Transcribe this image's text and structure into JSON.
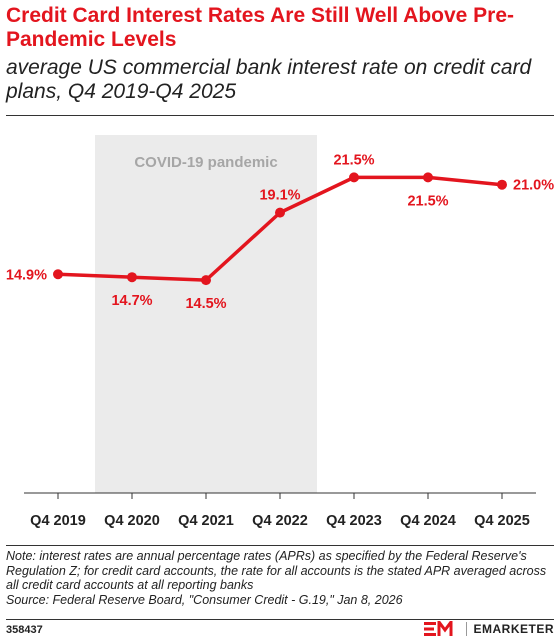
{
  "header": {
    "title": "Credit Card Interest Rates Are Still Well Above Pre-Pandemic Levels",
    "subtitle": "average US commercial bank interest rate on credit card plans, Q4 2019-Q4 2025"
  },
  "chart_data": {
    "type": "line",
    "categories": [
      "Q4 2019",
      "Q4 2020",
      "Q4 2021",
      "Q4 2022",
      "Q4 2023",
      "Q4 2024",
      "Q4 2025"
    ],
    "series": [
      {
        "values": [
          14.9,
          14.7,
          14.5,
          19.1,
          21.5,
          21.5,
          21.0
        ]
      }
    ],
    "data_labels": [
      "14.9%",
      "14.7%",
      "14.5%",
      "19.1%",
      "21.5%",
      "21.5%",
      "21.0%"
    ],
    "label_position": [
      "left",
      "below",
      "below",
      "above",
      "above",
      "below",
      "right"
    ],
    "annotation": {
      "text": "COVID-19 pandemic",
      "from_category": "Q4 2020",
      "to_category": "Q4 2022",
      "color": "#ebebeb"
    },
    "ylim": [
      0,
      25
    ],
    "grid": false,
    "color": "#e3151e"
  },
  "note": {
    "text": "Note: interest rates are annual percentage rates (APRs) as specified by the Federal Reserve's Regulation Z; for credit card accounts, the rate for all accounts is the stated APR averaged across all credit card accounts at all reporting banks",
    "source": "Source: Federal Reserve Board, \"Consumer Credit - G.19,\" Jan 8, 2026"
  },
  "footer": {
    "chart_id": "358437",
    "brand": "EMARKETER",
    "brand_color": "#e3151e"
  }
}
